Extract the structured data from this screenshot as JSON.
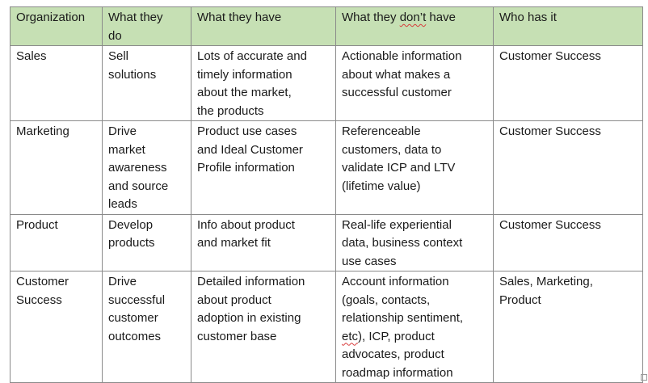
{
  "table": {
    "headers": {
      "organization": "Organization",
      "do_part1": "What they",
      "do_part2": "do",
      "have": "What they have",
      "donthave_pre": "What they ",
      "donthave_word": "don’t",
      "donthave_post": " have",
      "who": "Who has it"
    },
    "rows": [
      {
        "org": [
          "Sales"
        ],
        "do": [
          "Sell",
          "solutions"
        ],
        "have": [
          "Lots of accurate and",
          "timely information",
          "about the market,",
          "the products"
        ],
        "donthave": [
          "Actionable information",
          "about what makes a",
          "successful customer"
        ],
        "who": [
          "Customer Success"
        ]
      },
      {
        "org": [
          "Marketing"
        ],
        "do": [
          "Drive",
          "market",
          "awareness",
          "and source",
          "leads"
        ],
        "have": [
          "Product use cases",
          "and Ideal Customer",
          "Profile information"
        ],
        "donthave": [
          "Referenceable",
          "customers, data to",
          "validate ICP and LTV",
          "(lifetime value)"
        ],
        "who": [
          "Customer Success"
        ]
      },
      {
        "org": [
          "Product"
        ],
        "do": [
          "Develop",
          "products"
        ],
        "have": [
          "Info about product",
          "and market fit"
        ],
        "donthave": [
          "Real-life experiential",
          "data, business context",
          "use cases"
        ],
        "who": [
          "Customer Success"
        ]
      },
      {
        "org": [
          "Customer",
          "Success"
        ],
        "do": [
          "Drive",
          "successful",
          "customer",
          "outcomes"
        ],
        "have": [
          "Detailed information",
          "about product",
          "adoption in existing",
          "customer base"
        ],
        "donthave_l1": "Account information",
        "donthave_l2": "(goals, contacts,",
        "donthave_l3": "relationship sentiment,",
        "donthave_l4_word": "etc",
        "donthave_l4_rest": "), ICP, product",
        "donthave_l5": "advocates, product",
        "donthave_l6": "roadmap information",
        "who": [
          "Sales, Marketing,",
          "Product"
        ]
      }
    ]
  }
}
